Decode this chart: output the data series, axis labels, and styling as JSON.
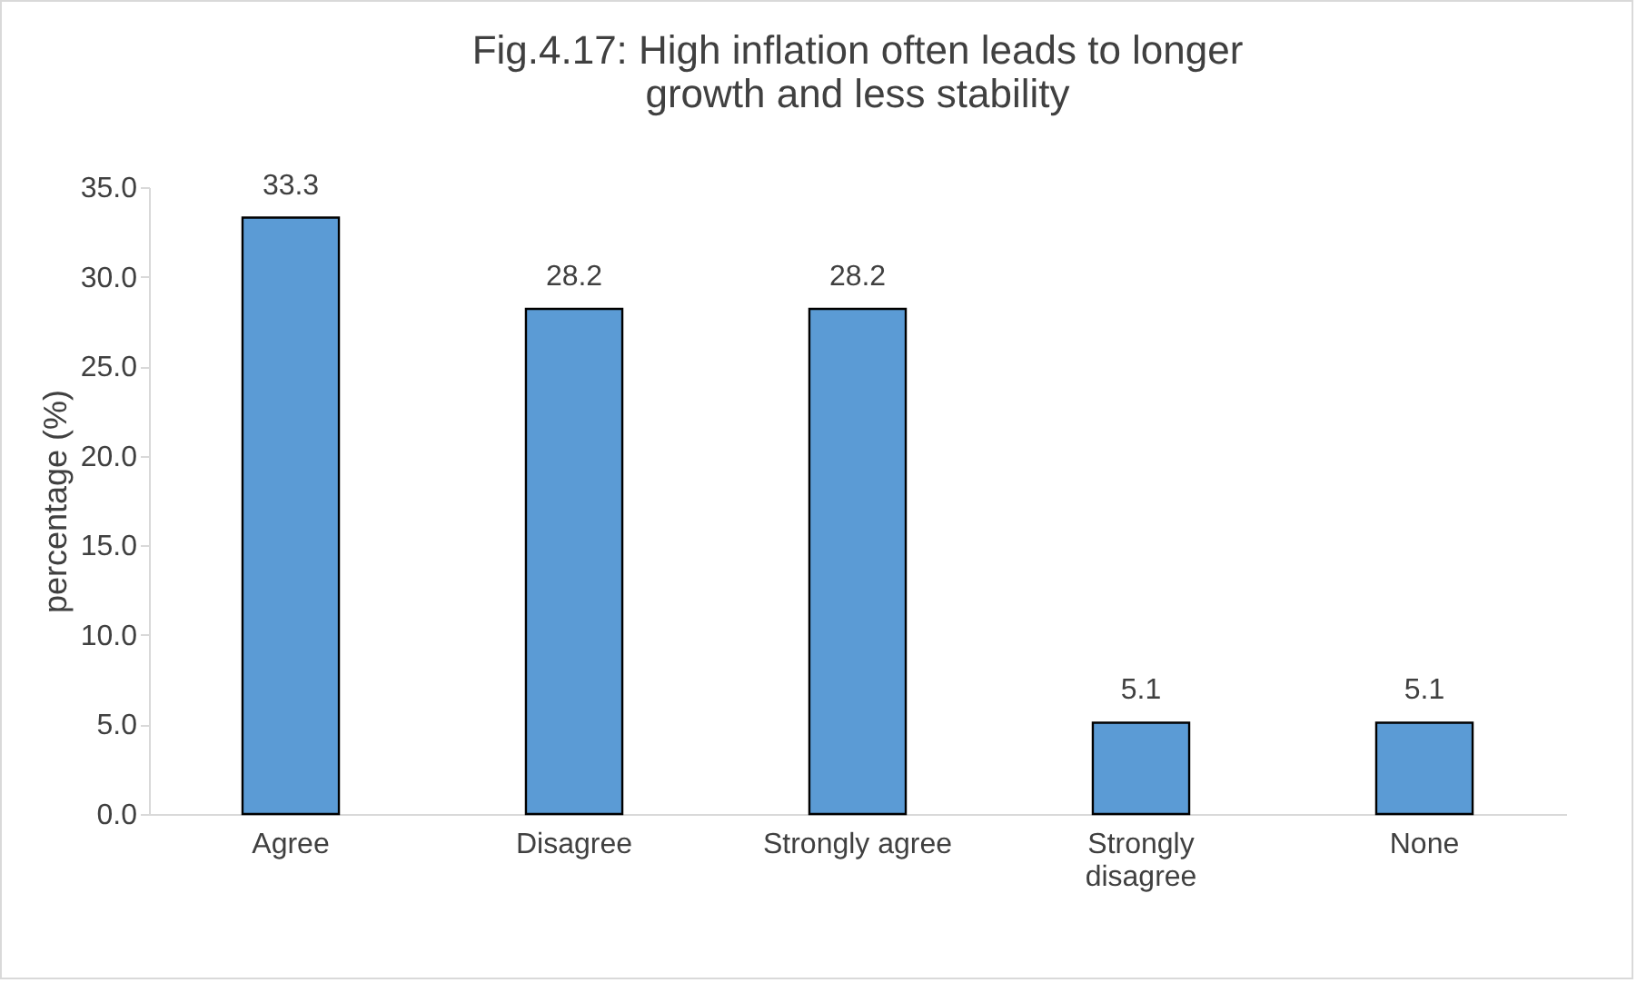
{
  "chart_data": {
    "type": "bar",
    "title": "Fig.4.17: High inflation often leads to longer growth and less stability",
    "ylabel": "percentage (%)",
    "categories": [
      "Agree",
      "Disagree",
      "Strongly agree",
      "Strongly disagree",
      "None"
    ],
    "values": [
      33.3,
      28.2,
      28.2,
      5.1,
      5.1
    ],
    "color": "#5b9bd5",
    "data_labels": true,
    "grid": false,
    "ylim": [
      0,
      35
    ],
    "yticks": [
      {
        "value": 0,
        "label": "0.0"
      },
      {
        "value": 5,
        "label": "5.0"
      },
      {
        "value": 10,
        "label": "10.0"
      },
      {
        "value": 15,
        "label": "15.0"
      },
      {
        "value": 20,
        "label": "20.0"
      },
      {
        "value": 25,
        "label": "25.0"
      },
      {
        "value": 30,
        "label": "30.0"
      },
      {
        "value": 35,
        "label": "35.0"
      }
    ]
  }
}
